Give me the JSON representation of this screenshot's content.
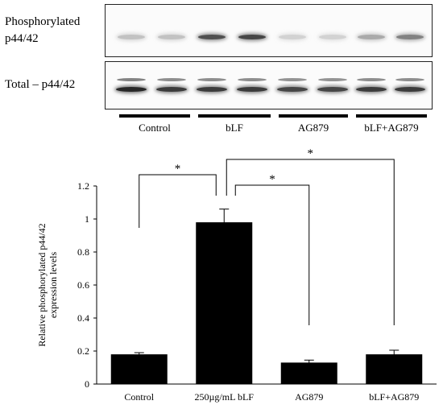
{
  "blot": {
    "top_label_line1": "Phosphorylated",
    "top_label_line2": "p44/42",
    "bottom_label": "Total – p44/42",
    "lanes": [
      "Control",
      "bLF",
      "AG879",
      "bLF+AG879"
    ],
    "phospho_intensity": [
      0.18,
      0.18,
      0.75,
      0.8,
      0.1,
      0.1,
      0.3,
      0.5
    ],
    "total_intensity": [
      0.95,
      0.85,
      0.85,
      0.85,
      0.8,
      0.8,
      0.85,
      0.85
    ]
  },
  "chart_data": {
    "type": "bar",
    "categories": [
      "Control",
      "250µg/mL bLF",
      "AG879",
      "bLF+AG879"
    ],
    "values": [
      0.18,
      0.98,
      0.13,
      0.18
    ],
    "errors": [
      0.01,
      0.08,
      0.015,
      0.025
    ],
    "ylabel": "Relative phosphorylated p44/42 expression levels",
    "ylim": [
      0,
      1.2
    ],
    "yticks": [
      "0",
      "0.2",
      "0.4",
      "0.6",
      "0.8",
      "1",
      "1.2"
    ],
    "yticks_values": [
      0,
      0.2,
      0.4,
      0.6,
      0.8,
      1.0,
      1.2
    ],
    "bar_color": "#000000",
    "significance": [
      {
        "from": "Control",
        "to": "250µg/mL bLF",
        "label": "*"
      },
      {
        "from": "250µg/mL bLF",
        "to": "AG879",
        "label": "*"
      },
      {
        "from": "250µg/mL bLF",
        "to": "bLF+AG879",
        "label": "*"
      }
    ]
  }
}
